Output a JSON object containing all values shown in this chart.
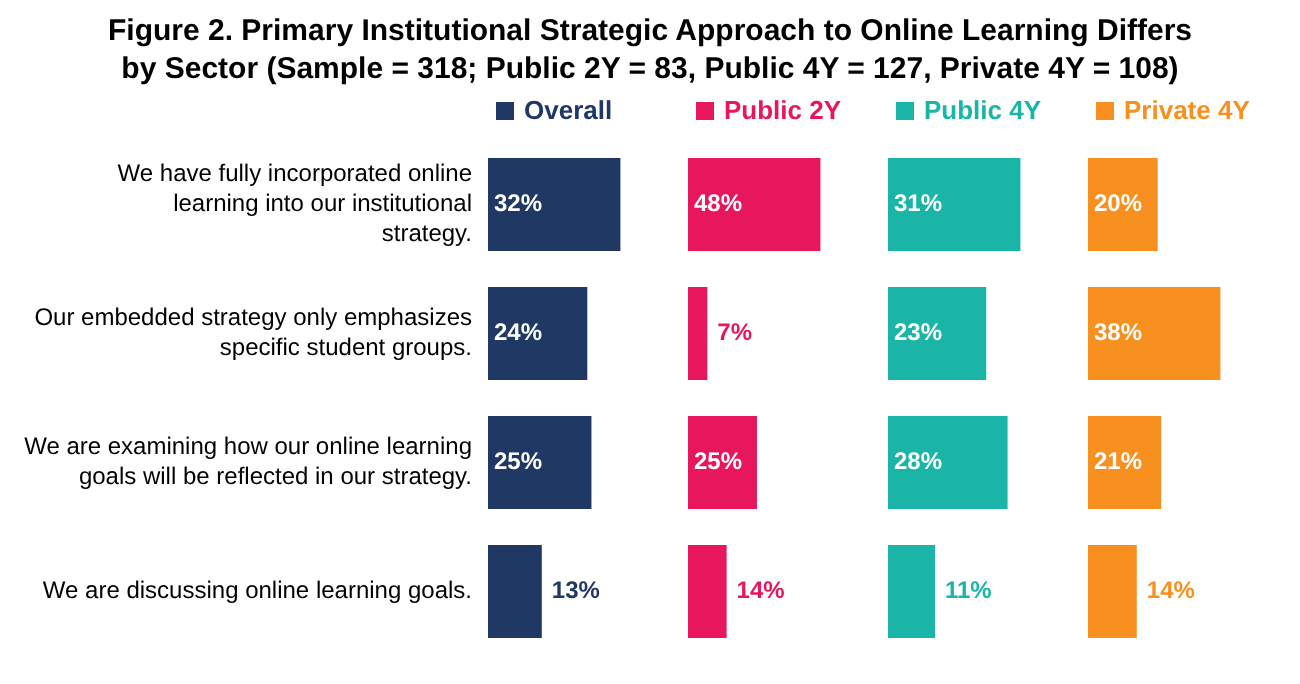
{
  "chart_data": [
    {
      "type": "bar",
      "orientation": "horizontal",
      "title": "Figure 2. Primary Institutional Strategic Approach to Online Learning Differs by Sector (Sample = 318; Public 2Y = 83, Public 4Y = 127, Private 4Y = 108)",
      "categories": [
        "We have fully incorporated online learning into our institutional strategy.",
        "Our embedded strategy only emphasizes specific student groups.",
        "We are examining how our online learning goals will be reflected in our strategy.",
        "We are discussing online learning goals."
      ],
      "series": [
        {
          "name": "Overall",
          "color": "#1f3864",
          "values": [
            32,
            24,
            25,
            13
          ],
          "value_labels": [
            "32%",
            "24%",
            "25%",
            "13%"
          ]
        }
      ],
      "legend": "top",
      "tick_labels": "y"
    },
    {
      "type": "bar",
      "orientation": "horizontal",
      "categories": [
        null,
        null,
        null,
        null
      ],
      "series": [
        {
          "name": "Public 2Y",
          "color": "#e8175d",
          "values": [
            48,
            7,
            25,
            14
          ],
          "value_labels": [
            "48%",
            "7%",
            "25%",
            "14%"
          ]
        }
      ],
      "legend": "top",
      "tick_labels": false
    },
    {
      "type": "bar",
      "orientation": "horizontal",
      "categories": [
        null,
        null,
        null,
        null
      ],
      "series": [
        {
          "name": "Public 4Y",
          "color": "#1bb5a8",
          "values": [
            31,
            23,
            28,
            11
          ],
          "value_labels": [
            "31%",
            "23%",
            "28%",
            "11%"
          ]
        }
      ],
      "legend": "top",
      "tick_labels": false
    },
    {
      "type": "bar",
      "orientation": "horizontal",
      "categories": [
        null,
        null,
        null,
        null
      ],
      "series": [
        {
          "name": "Private 4Y",
          "color": "#f7901e",
          "values": [
            20,
            38,
            21,
            14
          ],
          "value_labels": [
            "20%",
            "38%",
            "21%",
            "14%"
          ]
        }
      ],
      "legend": "top",
      "tick_labels": false
    }
  ]
}
